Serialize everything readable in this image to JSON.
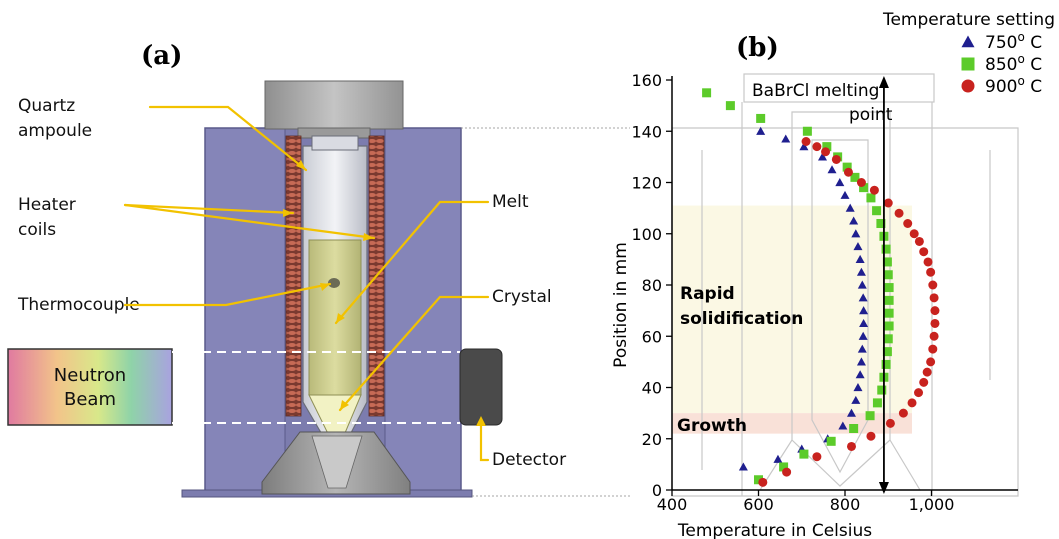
{
  "panel_a": {
    "label": "(a)",
    "callouts": {
      "quartz_line1": "Quartz",
      "quartz_line2": "ampoule",
      "heater_line1": "Heater",
      "heater_line2": "coils",
      "thermocouple": "Thermocouple",
      "melt": "Melt",
      "crystal": "Crystal",
      "detector": "Detector",
      "beam_line1": "Neutron",
      "beam_line2": "Beam"
    },
    "colors": {
      "furnace": "#8585b8",
      "callout": "#f2c200",
      "coils": "#a04a3a",
      "melt": "#c9c98a",
      "cap": "#a9a9a9",
      "detector": "#4a4a4a"
    }
  },
  "panel_b": {
    "label": "(b)",
    "melting_label_line1": "BaBrCl melting",
    "melting_label_line2": "point",
    "region_rapid_line1": "Rapid",
    "region_rapid_line2": "solidification",
    "region_growth": "Growth",
    "legend_title": "Temperature setting",
    "colors": {
      "rapid_band": "#fbf8e4",
      "growth_band": "#f9e1d8"
    }
  },
  "chart_data": {
    "type": "scatter",
    "xlabel": "Temperature in Celsius",
    "ylabel": "Position in mm",
    "xlim": [
      400,
      1200
    ],
    "ylim": [
      0,
      160
    ],
    "x_ticks": [
      {
        "value": 400,
        "label": "400"
      },
      {
        "value": 600,
        "label": "600"
      },
      {
        "value": 800,
        "label": "800"
      },
      {
        "value": 1000,
        "label": "1,000"
      }
    ],
    "y_ticks": [
      {
        "value": 0,
        "label": "0"
      },
      {
        "value": 20,
        "label": "20"
      },
      {
        "value": 40,
        "label": "40"
      },
      {
        "value": 60,
        "label": "60"
      },
      {
        "value": 80,
        "label": "80"
      },
      {
        "value": 100,
        "label": "100"
      },
      {
        "value": 120,
        "label": "120"
      },
      {
        "value": 140,
        "label": "140"
      },
      {
        "value": 160,
        "label": "160"
      }
    ],
    "melting_point": 890,
    "regions": [
      {
        "name": "Rapid solidification",
        "y_range": [
          30,
          111
        ]
      },
      {
        "name": "Growth",
        "y_range": [
          22,
          30
        ]
      }
    ],
    "series": [
      {
        "name": "750",
        "legend_label": "750",
        "legend_suffix": " C",
        "legend_sup": "o",
        "marker": "triangle",
        "color": "#1f1f8f",
        "points": [
          [
            565,
            9
          ],
          [
            645,
            12
          ],
          [
            700,
            16
          ],
          [
            760,
            20
          ],
          [
            795,
            25
          ],
          [
            815,
            30
          ],
          [
            825,
            35
          ],
          [
            830,
            40
          ],
          [
            835,
            45
          ],
          [
            838,
            50
          ],
          [
            840,
            55
          ],
          [
            842,
            60
          ],
          [
            843,
            65
          ],
          [
            843,
            70
          ],
          [
            842,
            75
          ],
          [
            840,
            80
          ],
          [
            838,
            85
          ],
          [
            835,
            90
          ],
          [
            830,
            95
          ],
          [
            825,
            100
          ],
          [
            820,
            105
          ],
          [
            812,
            110
          ],
          [
            800,
            115
          ],
          [
            788,
            120
          ],
          [
            770,
            125
          ],
          [
            748,
            130
          ],
          [
            705,
            134
          ],
          [
            663,
            137
          ],
          [
            605,
            140
          ]
        ]
      },
      {
        "name": "850",
        "legend_label": "850",
        "legend_suffix": " C",
        "legend_sup": "o",
        "marker": "square",
        "color": "#5ccb2a",
        "points": [
          [
            600,
            4
          ],
          [
            658,
            9
          ],
          [
            705,
            14
          ],
          [
            768,
            19
          ],
          [
            820,
            24
          ],
          [
            858,
            29
          ],
          [
            875,
            34
          ],
          [
            885,
            39
          ],
          [
            890,
            44
          ],
          [
            895,
            49
          ],
          [
            898,
            54
          ],
          [
            900,
            59
          ],
          [
            902,
            64
          ],
          [
            902,
            69
          ],
          [
            902,
            74
          ],
          [
            902,
            79
          ],
          [
            900,
            84
          ],
          [
            898,
            89
          ],
          [
            895,
            94
          ],
          [
            890,
            99
          ],
          [
            883,
            104
          ],
          [
            873,
            109
          ],
          [
            860,
            114
          ],
          [
            843,
            118
          ],
          [
            823,
            122
          ],
          [
            805,
            126
          ],
          [
            783,
            130
          ],
          [
            758,
            134
          ],
          [
            713,
            140
          ],
          [
            605,
            145
          ],
          [
            535,
            150
          ],
          [
            480,
            155
          ]
        ]
      },
      {
        "name": "900",
        "legend_label": "900",
        "legend_suffix": " C",
        "legend_sup": "o",
        "marker": "circle",
        "color": "#c8221e",
        "points": [
          [
            610,
            3
          ],
          [
            665,
            7
          ],
          [
            735,
            13
          ],
          [
            815,
            17
          ],
          [
            860,
            21
          ],
          [
            905,
            26
          ],
          [
            935,
            30
          ],
          [
            955,
            34
          ],
          [
            970,
            38
          ],
          [
            982,
            42
          ],
          [
            990,
            46
          ],
          [
            998,
            50
          ],
          [
            1003,
            55
          ],
          [
            1006,
            60
          ],
          [
            1008,
            65
          ],
          [
            1008,
            70
          ],
          [
            1006,
            75
          ],
          [
            1003,
            80
          ],
          [
            998,
            85
          ],
          [
            992,
            89
          ],
          [
            982,
            93
          ],
          [
            972,
            97
          ],
          [
            960,
            100
          ],
          [
            945,
            104
          ],
          [
            925,
            108
          ],
          [
            900,
            112
          ],
          [
            868,
            117
          ],
          [
            838,
            120
          ],
          [
            808,
            124
          ],
          [
            780,
            129
          ],
          [
            755,
            132
          ],
          [
            735,
            134
          ],
          [
            710,
            136
          ]
        ]
      }
    ]
  }
}
